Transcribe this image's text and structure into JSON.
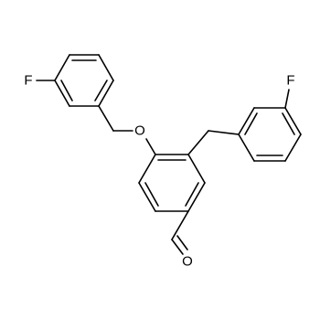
{
  "atoms": [
    {
      "label": "F"
    },
    {
      "label": "O"
    },
    {
      "label": "F"
    },
    {
      "label": "O"
    }
  ]
}
